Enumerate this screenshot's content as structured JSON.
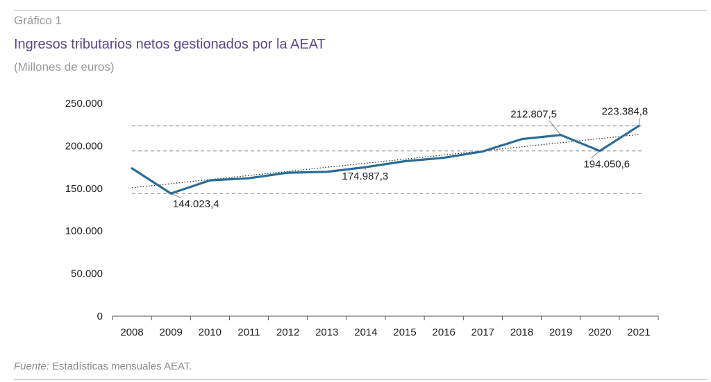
{
  "figure_label": "Gráfico 1",
  "title": "Ingresos tributarios netos gestionados por la AEAT",
  "subtitle": "(Millones de euros)",
  "source": {
    "label": "Fuente:",
    "text": " Estadísticas mensuales AEAT."
  },
  "colors": {
    "line": "#2c6b96",
    "title": "#5b4a8b",
    "reference": "#808080",
    "trend": "#222222"
  },
  "chart_data": {
    "type": "line",
    "categories": [
      "2008",
      "2009",
      "2010",
      "2011",
      "2012",
      "2013",
      "2014",
      "2015",
      "2016",
      "2017",
      "2018",
      "2019",
      "2020",
      "2021"
    ],
    "series": [
      {
        "values": [
          173500,
          144023.4,
          159500,
          162000,
          168500,
          169500,
          174987.3,
          182000,
          186000,
          193500,
          208000,
          212807.5,
          194050.6,
          223384.8
        ]
      }
    ],
    "ylim": [
      0,
      250000
    ],
    "yticks": [
      {
        "value": 0,
        "label": "0"
      },
      {
        "value": 50000,
        "label": "50.000"
      },
      {
        "value": 100000,
        "label": "100.000"
      },
      {
        "value": 150000,
        "label": "150.000"
      },
      {
        "value": 200000,
        "label": "200.000"
      },
      {
        "value": 250000,
        "label": "250.000"
      }
    ],
    "reference_lines": [
      223384.8,
      194050.6,
      144023.4
    ],
    "trendline": {
      "style": "dotted",
      "start": 150800,
      "end": 213300
    },
    "data_labels": [
      {
        "index": 1,
        "text": "144.023,4"
      },
      {
        "index": 6,
        "text": "174.987,3"
      },
      {
        "index": 11,
        "text": "212.807,5"
      },
      {
        "index": 12,
        "text": "194.050,6"
      },
      {
        "index": 13,
        "text": "223.384,8"
      }
    ],
    "grid": false,
    "legend": "none"
  }
}
